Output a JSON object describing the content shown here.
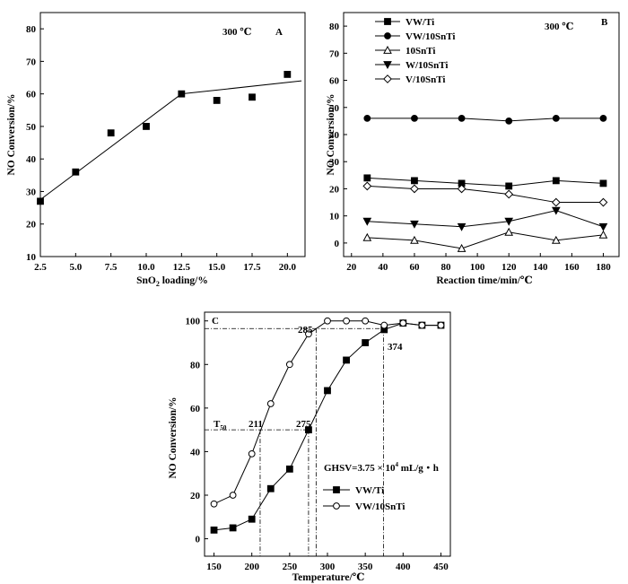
{
  "chart_data": [
    {
      "type": "scatter",
      "panel_label": "A",
      "annotation": "300 ℃",
      "xlabel_main": "SnO",
      "xlabel_sub": "2",
      "xlabel_rest": " loading/%",
      "ylabel": "NO Conversion/%",
      "xlim": [
        2.5,
        21.25
      ],
      "ylim": [
        10,
        85
      ],
      "xticks": [
        "2.5",
        "5.0",
        "7.5",
        "10.0",
        "12.5",
        "15.0",
        "17.5",
        "20.0"
      ],
      "yticks": [
        "10",
        "20",
        "30",
        "40",
        "50",
        "60",
        "70",
        "80"
      ],
      "series": [
        {
          "marker": "square-filled",
          "x": [
            2.5,
            5.0,
            7.5,
            10.0,
            12.5,
            15.0,
            17.5,
            20.0
          ],
          "y": [
            27,
            36,
            48,
            50,
            60,
            58,
            59,
            66
          ]
        }
      ],
      "fit_lines": [
        {
          "x": [
            2.5,
            12.5
          ],
          "y": [
            27.5,
            60
          ]
        },
        {
          "x": [
            12.5,
            21.0
          ],
          "y": [
            60,
            64
          ]
        }
      ]
    },
    {
      "type": "line",
      "panel_label": "B",
      "annotation": "300 ℃",
      "xlabel": "Reaction time/min/℃",
      "ylabel": "NO Conversion/%",
      "xlim": [
        15,
        190
      ],
      "ylim": [
        -5,
        85
      ],
      "xticks": [
        "20",
        "40",
        "60",
        "80",
        "100",
        "120",
        "140",
        "160",
        "180"
      ],
      "yticks": [
        "0",
        "10",
        "20",
        "30",
        "40",
        "50",
        "60",
        "70",
        "80"
      ],
      "x": [
        30,
        60,
        90,
        120,
        150,
        180
      ],
      "series": [
        {
          "name": "VW/Ti",
          "marker": "square-filled",
          "values": [
            24,
            23,
            22,
            21,
            23,
            22
          ]
        },
        {
          "name": "VW/10SnTi",
          "marker": "circle-filled",
          "values": [
            46,
            46,
            46,
            45,
            46,
            46
          ]
        },
        {
          "name": "10SnTi",
          "marker": "triangle-up-open",
          "values": [
            2,
            1,
            -2,
            4,
            1,
            3
          ]
        },
        {
          "name": "W/10SnTi",
          "marker": "triangle-down-filled",
          "values": [
            8,
            7,
            6,
            8,
            12,
            6
          ]
        },
        {
          "name": "V/10SnTi",
          "marker": "diamond-open",
          "values": [
            21,
            20,
            20,
            18,
            15,
            15
          ]
        }
      ],
      "legend_position": "top-left"
    },
    {
      "type": "line",
      "panel_label": "C",
      "xlabel": "Temperature/℃",
      "ylabel": "NO Conversion/%",
      "xlim": [
        137.5,
        462.5
      ],
      "ylim": [
        -8,
        104
      ],
      "xticks": [
        "150",
        "200",
        "250",
        "300",
        "350",
        "400",
        "450"
      ],
      "yticks": [
        "0",
        "20",
        "40",
        "60",
        "80",
        "100"
      ],
      "series": [
        {
          "name": "VW/Ti",
          "marker": "square-filled",
          "x": [
            150,
            175,
            200,
            225,
            250,
            275,
            300,
            325,
            350,
            375,
            400,
            425,
            450
          ],
          "y": [
            4,
            5,
            9,
            23,
            32,
            50,
            68,
            82,
            90,
            96,
            99,
            98,
            98
          ]
        },
        {
          "name": "VW/10SnTi",
          "marker": "circle-open",
          "x": [
            150,
            175,
            200,
            225,
            250,
            275,
            300,
            325,
            350,
            375,
            400,
            425,
            450
          ],
          "y": [
            16,
            20,
            39,
            62,
            80,
            94,
            100,
            100,
            100,
            98,
            99,
            98,
            98
          ]
        }
      ],
      "guide_lines": {
        "t50_level": 50,
        "t96_level": 96.5,
        "temps": [
          211,
          275,
          285,
          374
        ]
      },
      "annotations": {
        "t50_main": "T",
        "t50_sub": "50",
        "l211": "211",
        "l275": "275",
        "l285": "285",
        "l374": "374",
        "ghsv_main": "GHSV=3.75 × 10",
        "ghsv_sup": "4",
        "ghsv_rest": " mL/g・h"
      },
      "legend_position": "center-right"
    }
  ]
}
